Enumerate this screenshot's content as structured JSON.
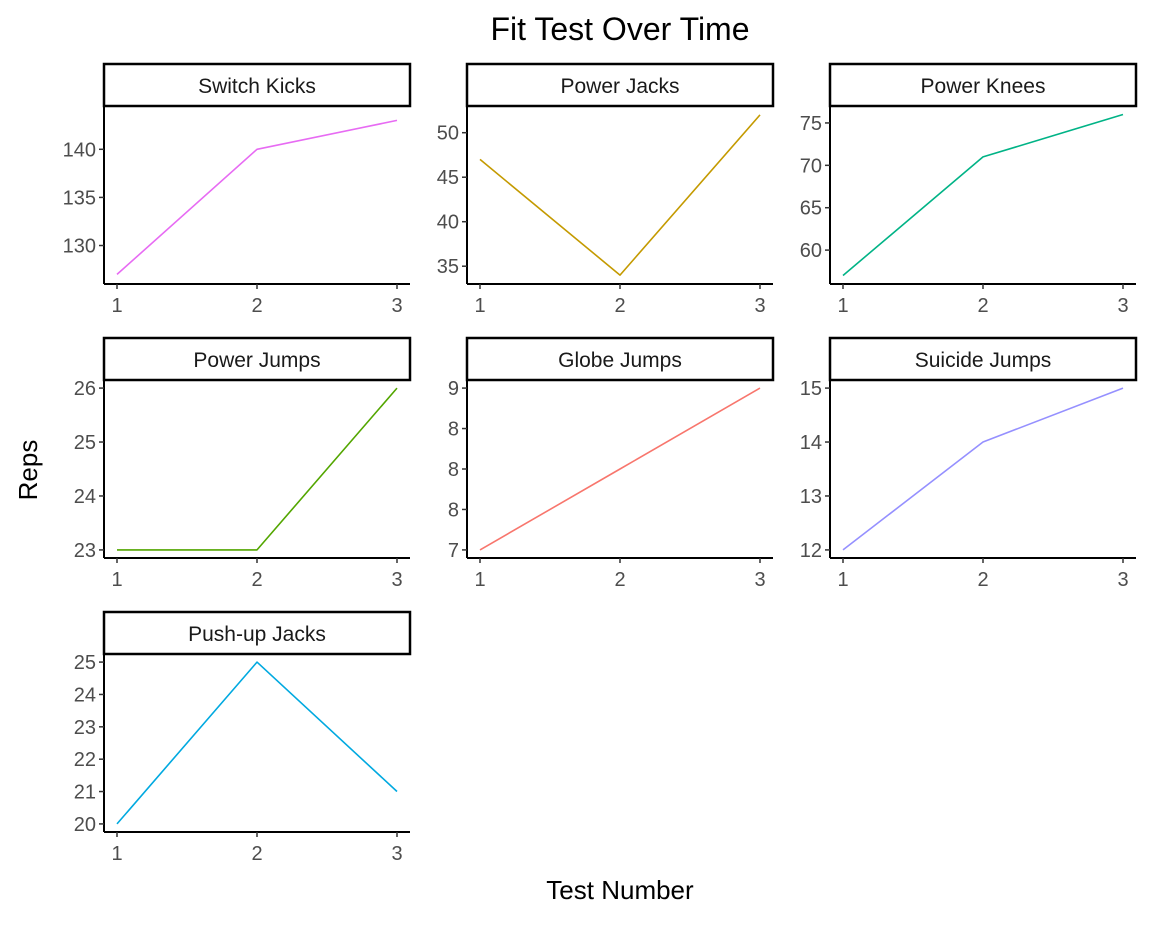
{
  "chart_data": {
    "type": "line",
    "title": "Fit Test Over Time",
    "xlabel": "Test Number",
    "ylabel": "Reps",
    "x": [
      1,
      2,
      3
    ],
    "x_ticks": [
      "1",
      "2",
      "3"
    ],
    "grid": false,
    "legend": "none",
    "facets": [
      {
        "name": "Switch Kicks",
        "color": "#E76BF3",
        "values": [
          127,
          140,
          143
        ],
        "ylim": [
          126,
          144.5
        ],
        "yticks": [
          130,
          135,
          140
        ],
        "ytick_labels": [
          "130",
          "135",
          "140"
        ]
      },
      {
        "name": "Power Jacks",
        "color": "#C49A00",
        "values": [
          47,
          34,
          52
        ],
        "ylim": [
          33,
          53
        ],
        "yticks": [
          35,
          40,
          45,
          50
        ],
        "ytick_labels": [
          "35",
          "40",
          "45",
          "50"
        ]
      },
      {
        "name": "Power Knees",
        "color": "#00B386",
        "values": [
          57,
          71,
          76
        ],
        "ylim": [
          56,
          77
        ],
        "yticks": [
          60,
          65,
          70,
          75
        ],
        "ytick_labels": [
          "60",
          "65",
          "70",
          "75"
        ]
      },
      {
        "name": "Power Jumps",
        "color": "#53A600",
        "values": [
          23,
          23,
          26
        ],
        "ylim": [
          22.85,
          26.15
        ],
        "yticks": [
          23,
          24,
          25,
          26
        ],
        "ytick_labels": [
          "23",
          "24",
          "25",
          "26"
        ]
      },
      {
        "name": "Globe Jumps",
        "color": "#F8766D",
        "values": [
          7,
          8,
          9
        ],
        "ylim": [
          6.9,
          9.1
        ],
        "yticks": [
          7,
          7.5,
          8,
          8.5,
          9
        ],
        "ytick_labels": [
          "7",
          "8",
          "8",
          "8",
          "9"
        ]
      },
      {
        "name": "Suicide Jumps",
        "color": "#9590FF",
        "values": [
          12,
          14,
          15
        ],
        "ylim": [
          11.85,
          15.15
        ],
        "yticks": [
          12,
          13,
          14,
          15
        ],
        "ytick_labels": [
          "12",
          "13",
          "14",
          "15"
        ]
      },
      {
        "name": "Push-up Jacks",
        "color": "#00A9E0",
        "values": [
          20,
          25,
          21
        ],
        "ylim": [
          19.75,
          25.25
        ],
        "yticks": [
          20,
          21,
          22,
          23,
          24,
          25
        ],
        "ytick_labels": [
          "20",
          "21",
          "22",
          "23",
          "24",
          "25"
        ]
      }
    ]
  }
}
